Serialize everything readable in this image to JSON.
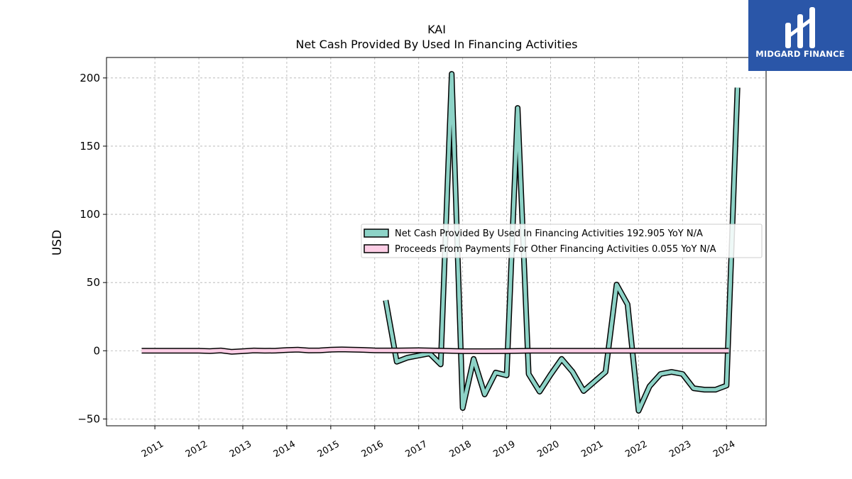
{
  "brand": {
    "name": "MIDGARD FINANCE",
    "bg_color": "#2a56a8"
  },
  "chart_data": {
    "type": "line",
    "title": "KAI",
    "subtitle": "Net Cash Provided By Used In Financing Activities",
    "ylabel": "USD",
    "xlabel": "",
    "ylim": [
      -55,
      215
    ],
    "xlim": [
      2009.9,
      2024.9
    ],
    "yticks": [
      -50,
      0,
      50,
      100,
      150,
      200
    ],
    "xticks": [
      "2011",
      "2012",
      "2013",
      "2014",
      "2015",
      "2016",
      "2017",
      "2018",
      "2019",
      "2020",
      "2021",
      "2022",
      "2023",
      "2024"
    ],
    "grid": true,
    "legend_position": "center-right",
    "series": [
      {
        "name": "Net Cash Provided By Used In Financing Activities",
        "legend_label": "Net Cash Provided By Used In Financing Activities  192.905 YoY N/A",
        "color": "#8dd3c7",
        "points": [
          [
            2016.25,
            37
          ],
          [
            2016.5,
            -8
          ],
          [
            2016.75,
            -5
          ],
          [
            2017.0,
            -3.5
          ],
          [
            2017.25,
            -2
          ],
          [
            2017.5,
            -10
          ],
          [
            2017.75,
            203
          ],
          [
            2018.0,
            -42
          ],
          [
            2018.25,
            -6
          ],
          [
            2018.5,
            -32
          ],
          [
            2018.75,
            -16
          ],
          [
            2019.0,
            -18
          ],
          [
            2019.25,
            178
          ],
          [
            2019.5,
            -17
          ],
          [
            2019.75,
            -30
          ],
          [
            2020.0,
            -17.5
          ],
          [
            2020.25,
            -6
          ],
          [
            2020.5,
            -15.5
          ],
          [
            2020.75,
            -29.5
          ],
          [
            2021.0,
            -22.5
          ],
          [
            2021.25,
            -15.5
          ],
          [
            2021.5,
            48.5
          ],
          [
            2021.75,
            34
          ],
          [
            2022.0,
            -44
          ],
          [
            2022.25,
            -26
          ],
          [
            2022.5,
            -17
          ],
          [
            2022.75,
            -15.5
          ],
          [
            2023.0,
            -17
          ],
          [
            2023.25,
            -27.5
          ],
          [
            2023.5,
            -28.5
          ],
          [
            2023.75,
            -28.5
          ],
          [
            2024.0,
            -25.5
          ],
          [
            2024.25,
            192.905
          ]
        ]
      },
      {
        "name": "Proceeds From Payments For Other Financing Activities",
        "legend_label": "Proceeds From Payments For Other Financing Activities  0.055 YoY N/A",
        "color": "#fccde5",
        "points": [
          [
            2010.7,
            0
          ],
          [
            2011.0,
            0
          ],
          [
            2011.5,
            0
          ],
          [
            2012.0,
            0
          ],
          [
            2012.25,
            -0.2
          ],
          [
            2012.5,
            0.2
          ],
          [
            2012.75,
            -0.8
          ],
          [
            2013.0,
            -0.3
          ],
          [
            2013.25,
            0.2
          ],
          [
            2013.5,
            0
          ],
          [
            2013.75,
            0.1
          ],
          [
            2014.0,
            0.5
          ],
          [
            2014.25,
            0.8
          ],
          [
            2014.5,
            0.2
          ],
          [
            2014.75,
            0.3
          ],
          [
            2015.0,
            0.8
          ],
          [
            2015.25,
            1.0
          ],
          [
            2015.5,
            0.8
          ],
          [
            2015.75,
            0.6
          ],
          [
            2016.0,
            0.3
          ],
          [
            2016.5,
            0.2
          ],
          [
            2017.0,
            0.4
          ],
          [
            2017.5,
            0.1
          ],
          [
            2018.0,
            -0.3
          ],
          [
            2018.5,
            -0.3
          ],
          [
            2019.0,
            -0.2
          ],
          [
            2019.5,
            0
          ],
          [
            2020.0,
            0
          ],
          [
            2021.0,
            0
          ],
          [
            2022.0,
            0
          ],
          [
            2023.0,
            0
          ],
          [
            2024.05,
            0.055
          ]
        ]
      }
    ]
  }
}
